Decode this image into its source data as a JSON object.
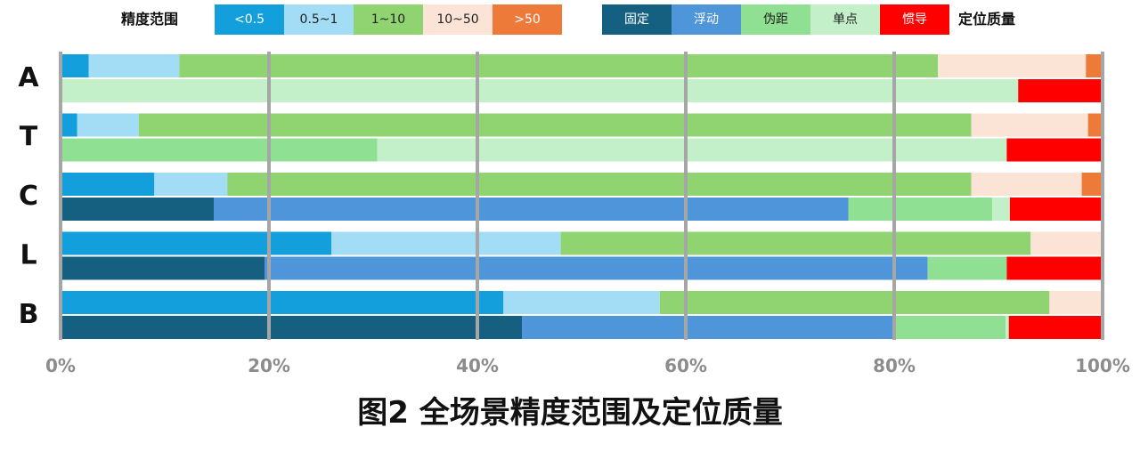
{
  "legend": {
    "precision_title": "精度范围",
    "precision_items": [
      {
        "label": "<0.5",
        "color": "#139fdb",
        "text_color": "#ffffff"
      },
      {
        "label": "0.5~1",
        "color": "#a3dcf5",
        "text_color": "#222222"
      },
      {
        "label": "1~10",
        "color": "#90d472",
        "text_color": "#222222"
      },
      {
        "label": "10~50",
        "color": "#fbe3d6",
        "text_color": "#222222"
      },
      {
        "label": ">50",
        "color": "#ee7a3a",
        "text_color": "#ffffff"
      }
    ],
    "quality_items": [
      {
        "label": "固定",
        "color": "#155f80",
        "text_color": "#ffffff"
      },
      {
        "label": "浮动",
        "color": "#4e95d9",
        "text_color": "#ffffff"
      },
      {
        "label": "伪距",
        "color": "#8fe093",
        "text_color": "#222222"
      },
      {
        "label": "单点",
        "color": "#c3f0c8",
        "text_color": "#222222"
      },
      {
        "label": "惯导",
        "color": "#ff0000",
        "text_color": "#ffffff"
      }
    ],
    "quality_title": "定位质量"
  },
  "caption": "图2 全场景精度范围及定位质量",
  "chart_data": {
    "type": "bar",
    "orientation": "horizontal",
    "stacked": true,
    "percent_stacked": true,
    "categories": [
      "A",
      "T",
      "C",
      "L",
      "B"
    ],
    "x_ticks": [
      "0%",
      "20%",
      "40%",
      "60%",
      "80%",
      "100%"
    ],
    "xlim": [
      0,
      100
    ],
    "precision_series": [
      {
        "name": "<0.5",
        "values": [
          2.7,
          1.6,
          9.0,
          26.0,
          42.5
        ]
      },
      {
        "name": "0.5~1",
        "values": [
          8.7,
          5.9,
          7.0,
          22.0,
          15.0
        ]
      },
      {
        "name": "1~10",
        "values": [
          72.8,
          79.9,
          71.4,
          45.1,
          37.4
        ]
      },
      {
        "name": "10~50",
        "values": [
          14.2,
          11.2,
          10.6,
          6.9,
          5.1
        ]
      },
      {
        "name": ">50",
        "values": [
          1.6,
          1.4,
          2.0,
          0.0,
          0.0
        ]
      }
    ],
    "quality_series": [
      {
        "name": "固定",
        "values": [
          0.0,
          0.0,
          14.7,
          19.6,
          44.3
        ]
      },
      {
        "name": "浮动",
        "values": [
          0.0,
          0.0,
          60.9,
          63.6,
          35.6
        ]
      },
      {
        "name": "伪距",
        "values": [
          0.0,
          30.4,
          13.8,
          7.6,
          10.8
        ]
      },
      {
        "name": "单点",
        "values": [
          91.9,
          60.4,
          1.7,
          0.0,
          0.3
        ]
      },
      {
        "name": "惯导",
        "values": [
          8.1,
          9.2,
          8.9,
          9.2,
          9.0
        ]
      }
    ],
    "grid": true
  }
}
